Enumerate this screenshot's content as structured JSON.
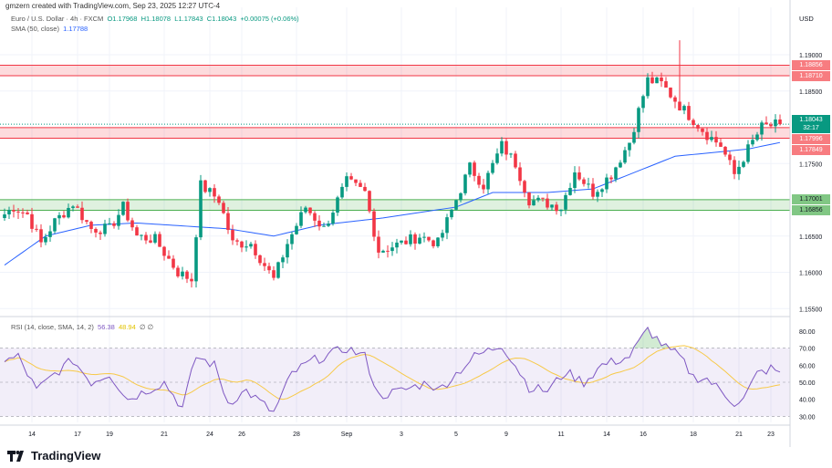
{
  "credit": "gmzern created with TradingView.com, Sep 23, 2025 12:27 UTC-4",
  "legend": {
    "symbol": "Euro / U.S. Dollar · 4h · FXCM",
    "o": "O1.17968",
    "h": "H1.18078",
    "l": "L1.17843",
    "c": "C1.18043",
    "chg": "+0.00075 (+0.06%)",
    "sma": "SMA (50, close)",
    "sma_val": "1.17788"
  },
  "rsi_legend": {
    "label": "RSI (14, close, SMA, 14, 2)",
    "rsi": "56.38",
    "sma": "48.94",
    "e1": "∅",
    "e2": "∅"
  },
  "currency": "USD",
  "footer": {
    "brand": "TradingView"
  },
  "colors": {
    "up": "#089981",
    "down": "#f23645",
    "sma": "#2962ff",
    "rsi": "#7e57c2",
    "rsi_sma": "#f7c948",
    "zone_red": "#f23645",
    "zone_green": "#4caf50"
  },
  "chart_data": {
    "type": "candlestick",
    "ylim": [
      1.1535,
      1.1975
    ],
    "y_ticks": [
      "1.19000",
      "1.18500",
      "1.17500",
      "1.16500",
      "1.16000",
      "1.15500"
    ],
    "price_labels": [
      {
        "text": "1.18856",
        "price": 1.18856,
        "kind": "red"
      },
      {
        "text": "1.18710",
        "price": 1.1871,
        "kind": "red"
      },
      {
        "text": "1.17996",
        "price": 1.17996,
        "kind": "red"
      },
      {
        "text": "1.17849",
        "price": 1.17849,
        "kind": "red"
      },
      {
        "text": "1.17001",
        "price": 1.17001,
        "kind": "green"
      },
      {
        "text": "1.16856",
        "price": 1.16856,
        "kind": "green"
      }
    ],
    "current": {
      "price": 1.18043,
      "text": "1.18043",
      "countdown": "32:17"
    },
    "zones": [
      {
        "top": 1.18856,
        "bottom": 1.1871,
        "kind": "red"
      },
      {
        "top": 1.17996,
        "bottom": 1.17849,
        "kind": "red"
      },
      {
        "top": 1.17001,
        "bottom": 1.16856,
        "kind": "green"
      }
    ],
    "bars": 171,
    "close_keyframes": [
      [
        0,
        1.168
      ],
      [
        2,
        1.169
      ],
      [
        5,
        1.168
      ],
      [
        8,
        1.164
      ],
      [
        11,
        1.167
      ],
      [
        15,
        1.1695
      ],
      [
        19,
        1.166
      ],
      [
        23,
        1.166
      ],
      [
        26,
        1.169
      ],
      [
        29,
        1.165
      ],
      [
        33,
        1.1645
      ],
      [
        38,
        1.16
      ],
      [
        41,
        1.159
      ],
      [
        43,
        1.172
      ],
      [
        47,
        1.17
      ],
      [
        50,
        1.164
      ],
      [
        54,
        1.164
      ],
      [
        59,
        1.159
      ],
      [
        62,
        1.164
      ],
      [
        66,
        1.169
      ],
      [
        70,
        1.166
      ],
      [
        75,
        1.1725
      ],
      [
        79,
        1.171
      ],
      [
        82,
        1.163
      ],
      [
        87,
        1.164
      ],
      [
        91,
        1.165
      ],
      [
        95,
        1.164
      ],
      [
        99,
        1.17
      ],
      [
        102,
        1.1745
      ],
      [
        105,
        1.172
      ],
      [
        109,
        1.1775
      ],
      [
        112,
        1.175
      ],
      [
        115,
        1.17
      ],
      [
        119,
        1.1695
      ],
      [
        122,
        1.169
      ],
      [
        125,
        1.174
      ],
      [
        129,
        1.171
      ],
      [
        133,
        1.1735
      ],
      [
        137,
        1.178
      ],
      [
        141,
        1.1865
      ],
      [
        144,
        1.186
      ],
      [
        148,
        1.183
      ],
      [
        151,
        1.181
      ],
      [
        154,
        1.179
      ],
      [
        157,
        1.1775
      ],
      [
        160,
        1.1735
      ],
      [
        163,
        1.177
      ],
      [
        166,
        1.18
      ],
      [
        170,
        1.18043
      ]
    ],
    "spike": {
      "bar": 148,
      "high": 1.192
    },
    "sma_keyframes": [
      [
        0,
        1.161
      ],
      [
        9,
        1.165
      ],
      [
        19,
        1.1665
      ],
      [
        29,
        1.1668
      ],
      [
        49,
        1.166
      ],
      [
        59,
        1.165
      ],
      [
        69,
        1.1665
      ],
      [
        83,
        1.1675
      ],
      [
        99,
        1.169
      ],
      [
        107,
        1.171
      ],
      [
        119,
        1.171
      ],
      [
        129,
        1.1715
      ],
      [
        139,
        1.174
      ],
      [
        147,
        1.176
      ],
      [
        155,
        1.1765
      ],
      [
        163,
        1.177
      ],
      [
        170,
        1.1779
      ]
    ],
    "rsi": {
      "ylim": [
        25,
        85
      ],
      "levels": [
        70,
        50,
        30
      ],
      "ticks": [
        "80.00",
        "70.00",
        "60.00",
        "50.00",
        "40.00",
        "30.00"
      ],
      "keyframes": [
        [
          0,
          62
        ],
        [
          3,
          65
        ],
        [
          7,
          45
        ],
        [
          11,
          55
        ],
        [
          15,
          63
        ],
        [
          19,
          50
        ],
        [
          23,
          55
        ],
        [
          27,
          40
        ],
        [
          31,
          45
        ],
        [
          35,
          50
        ],
        [
          39,
          35
        ],
        [
          42,
          65
        ],
        [
          46,
          60
        ],
        [
          49,
          38
        ],
        [
          53,
          45
        ],
        [
          59,
          32
        ],
        [
          63,
          55
        ],
        [
          67,
          62
        ],
        [
          75,
          70
        ],
        [
          79,
          65
        ],
        [
          82,
          42
        ],
        [
          87,
          45
        ],
        [
          93,
          50
        ],
        [
          95,
          45
        ],
        [
          99,
          55
        ],
        [
          103,
          65
        ],
        [
          109,
          72
        ],
        [
          112,
          60
        ],
        [
          115,
          47
        ],
        [
          119,
          45
        ],
        [
          123,
          56
        ],
        [
          127,
          50
        ],
        [
          131,
          60
        ],
        [
          137,
          65
        ],
        [
          141,
          81
        ],
        [
          145,
          70
        ],
        [
          148,
          65
        ],
        [
          151,
          53
        ],
        [
          154,
          52
        ],
        [
          157,
          45
        ],
        [
          160,
          38
        ],
        [
          162,
          40
        ],
        [
          165,
          55
        ],
        [
          168,
          58
        ],
        [
          170,
          56
        ]
      ]
    },
    "x_labels": [
      [
        "14",
        6
      ],
      [
        "17",
        16
      ],
      [
        "19",
        23
      ],
      [
        "21",
        35
      ],
      [
        "24",
        45
      ],
      [
        "26",
        52
      ],
      [
        "28",
        64
      ],
      [
        "Sep",
        75
      ],
      [
        "3",
        87
      ],
      [
        "5",
        99
      ],
      [
        "9",
        110
      ],
      [
        "11",
        122
      ],
      [
        "14",
        132
      ],
      [
        "16",
        140
      ],
      [
        "18",
        151
      ],
      [
        "21",
        161
      ],
      [
        "23",
        168
      ]
    ]
  }
}
